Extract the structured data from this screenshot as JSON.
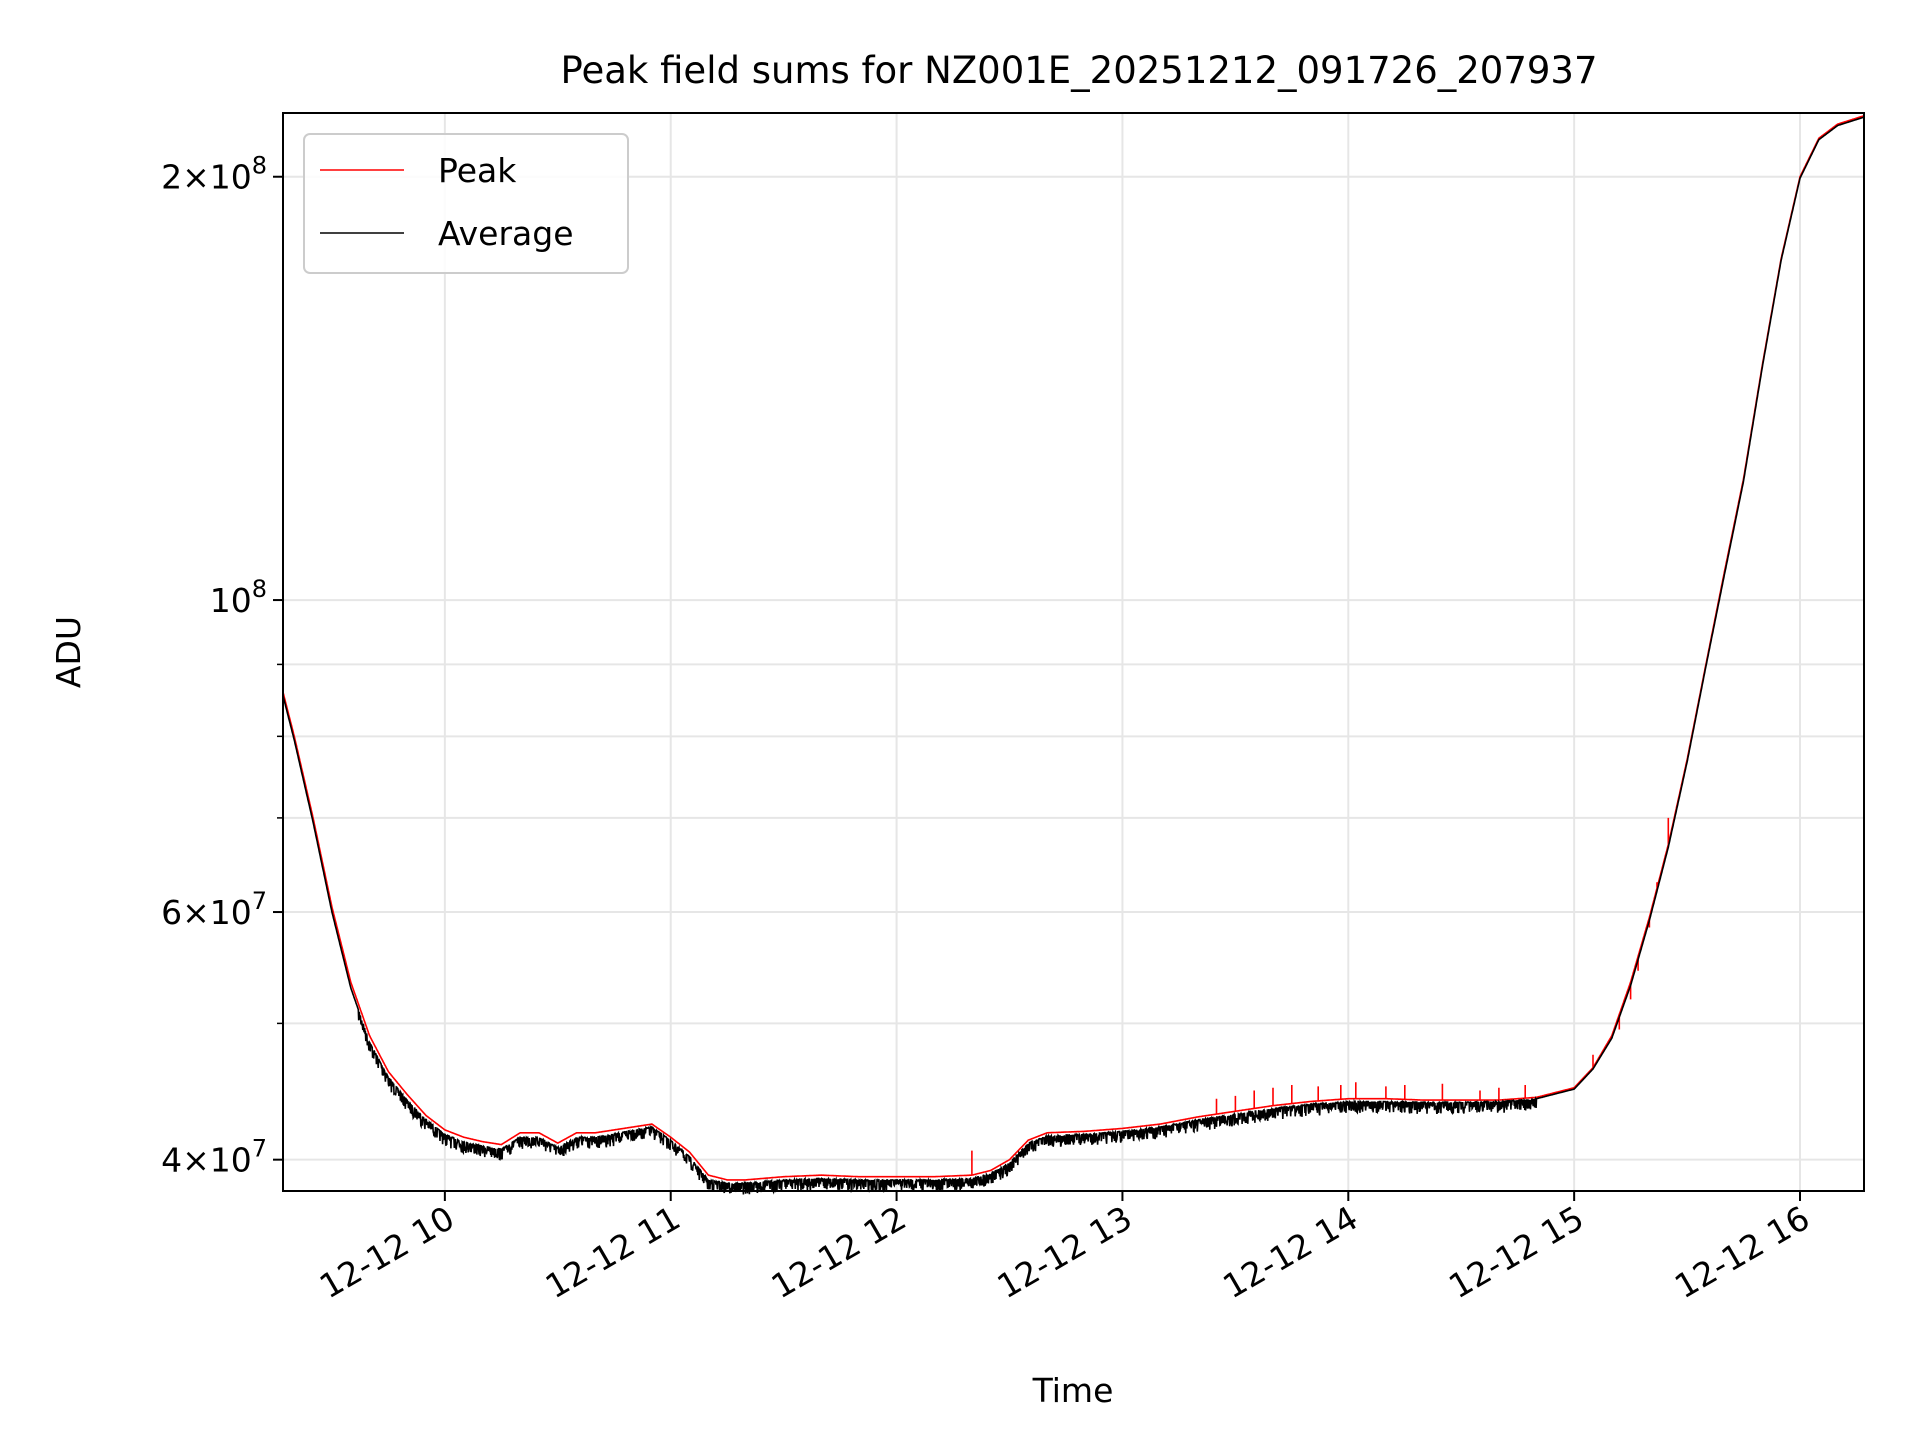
{
  "chart_data": {
    "type": "line",
    "title": "Peak field sums for NZ001E_20251212_091726_207937",
    "xlabel": "Time",
    "ylabel": "ADU",
    "y_scale": "log",
    "xlim": [
      "12-12 09:17",
      "12-12 16:17"
    ],
    "ylim": [
      38000000,
      222000000
    ],
    "grid": true,
    "legend_position": "upper-left",
    "x_ticks": [
      {
        "label": "12-12 10",
        "value": "12-12 10:00"
      },
      {
        "label": "12-12 11",
        "value": "12-12 11:00"
      },
      {
        "label": "12-12 12",
        "value": "12-12 12:00"
      },
      {
        "label": "12-12 13",
        "value": "12-12 13:00"
      },
      {
        "label": "12-12 14",
        "value": "12-12 14:00"
      },
      {
        "label": "12-12 15",
        "value": "12-12 15:00"
      },
      {
        "label": "12-12 16",
        "value": "12-12 16:00"
      }
    ],
    "y_ticks": [
      {
        "mantissa": "4",
        "exponent": "7",
        "value": 40000000
      },
      {
        "mantissa": "6",
        "exponent": "7",
        "value": 60000000
      },
      {
        "mantissa": "",
        "exponent": "8",
        "value": 100000000
      },
      {
        "mantissa": "2",
        "exponent": "8",
        "value": 200000000
      }
    ],
    "y_minor_ticks": [
      50000000,
      70000000,
      80000000,
      90000000
    ],
    "x": [
      "12-12 09:17",
      "12-12 09:20",
      "12-12 09:25",
      "12-12 09:30",
      "12-12 09:35",
      "12-12 09:40",
      "12-12 09:45",
      "12-12 09:50",
      "12-12 09:55",
      "12-12 10:00",
      "12-12 10:05",
      "12-12 10:10",
      "12-12 10:15",
      "12-12 10:20",
      "12-12 10:25",
      "12-12 10:30",
      "12-12 10:35",
      "12-12 10:40",
      "12-12 10:45",
      "12-12 10:50",
      "12-12 10:55",
      "12-12 11:00",
      "12-12 11:05",
      "12-12 11:10",
      "12-12 11:15",
      "12-12 11:20",
      "12-12 11:30",
      "12-12 11:40",
      "12-12 11:50",
      "12-12 12:00",
      "12-12 12:10",
      "12-12 12:20",
      "12-12 12:25",
      "12-12 12:30",
      "12-12 12:35",
      "12-12 12:40",
      "12-12 12:50",
      "12-12 13:00",
      "12-12 13:10",
      "12-12 13:20",
      "12-12 13:30",
      "12-12 13:40",
      "12-12 13:50",
      "12-12 14:00",
      "12-12 14:10",
      "12-12 14:20",
      "12-12 14:30",
      "12-12 14:40",
      "12-12 14:50",
      "12-12 15:00",
      "12-12 15:05",
      "12-12 15:10",
      "12-12 15:15",
      "12-12 15:20",
      "12-12 15:25",
      "12-12 15:30",
      "12-12 15:35",
      "12-12 15:40",
      "12-12 15:45",
      "12-12 15:50",
      "12-12 15:55",
      "12-12 16:00",
      "12-12 16:05",
      "12-12 16:10",
      "12-12 16:17"
    ],
    "series": [
      {
        "name": "Peak",
        "color": "#ff0000",
        "values": [
          86000000,
          80000000,
          70000000,
          60500000,
          53500000,
          49000000,
          46200000,
          44500000,
          43000000,
          42000000,
          41500000,
          41200000,
          41000000,
          41800000,
          41800000,
          41100000,
          41800000,
          41800000,
          42000000,
          42200000,
          42400000,
          41500000,
          40500000,
          39000000,
          38700000,
          38700000,
          38900000,
          39000000,
          38900000,
          38900000,
          38900000,
          39000000,
          39300000,
          40000000,
          41300000,
          41800000,
          41900000,
          42100000,
          42400000,
          42900000,
          43300000,
          43700000,
          44000000,
          44200000,
          44200000,
          44100000,
          44100000,
          44100000,
          44300000,
          45000000,
          46500000,
          49000000,
          53500000,
          59500000,
          67000000,
          77000000,
          90000000,
          105000000,
          122000000,
          147000000,
          175000000,
          200000000,
          213000000,
          218000000,
          221000000
        ],
        "spikes": [
          {
            "x": "12-12 12:20",
            "value": 40600000
          },
          {
            "x": "12-12 13:25",
            "value": 44200000
          },
          {
            "x": "12-12 13:30",
            "value": 44400000
          },
          {
            "x": "12-12 13:35",
            "value": 44800000
          },
          {
            "x": "12-12 13:40",
            "value": 45000000
          },
          {
            "x": "12-12 13:45",
            "value": 45200000
          },
          {
            "x": "12-12 13:52",
            "value": 45100000
          },
          {
            "x": "12-12 13:58",
            "value": 45200000
          },
          {
            "x": "12-12 14:02",
            "value": 45400000
          },
          {
            "x": "12-12 14:10",
            "value": 45100000
          },
          {
            "x": "12-12 14:15",
            "value": 45200000
          },
          {
            "x": "12-12 14:25",
            "value": 45300000
          },
          {
            "x": "12-12 14:35",
            "value": 44800000
          },
          {
            "x": "12-12 14:40",
            "value": 45000000
          },
          {
            "x": "12-12 14:47",
            "value": 45200000
          },
          {
            "x": "12-12 15:05",
            "value": 47500000
          },
          {
            "x": "12-12 15:12",
            "value": 49500000
          },
          {
            "x": "12-12 15:15",
            "value": 52000000
          },
          {
            "x": "12-12 15:17",
            "value": 54500000
          },
          {
            "x": "12-12 15:20",
            "value": 58500000
          },
          {
            "x": "12-12 15:22",
            "value": 63000000
          },
          {
            "x": "12-12 15:25",
            "value": 70000000
          }
        ]
      },
      {
        "name": "Average",
        "color": "#000000",
        "values": [
          85500000,
          79500000,
          69500000,
          60000000,
          53000000,
          48500000,
          45800000,
          44100000,
          42700000,
          41700000,
          41200000,
          40900000,
          40700000,
          41500000,
          41500000,
          40800000,
          41500000,
          41500000,
          41700000,
          42000000,
          42200000,
          41300000,
          40200000,
          38700000,
          38500000,
          38500000,
          38700000,
          38800000,
          38700000,
          38700000,
          38700000,
          38800000,
          39100000,
          39800000,
          41100000,
          41600000,
          41700000,
          41900000,
          42200000,
          42700000,
          43100000,
          43500000,
          43800000,
          44000000,
          44000000,
          43950000,
          43950000,
          44000000,
          44200000,
          44900000,
          46400000,
          48800000,
          53200000,
          59200000,
          66700000,
          76700000,
          89700000,
          104500000,
          121500000,
          146500000,
          174500000,
          199500000,
          212500000,
          217500000,
          220500000
        ],
        "noise_amplitude": 0.012
      }
    ]
  },
  "legend": {
    "peak_label": "Peak",
    "average_label": "Average"
  }
}
